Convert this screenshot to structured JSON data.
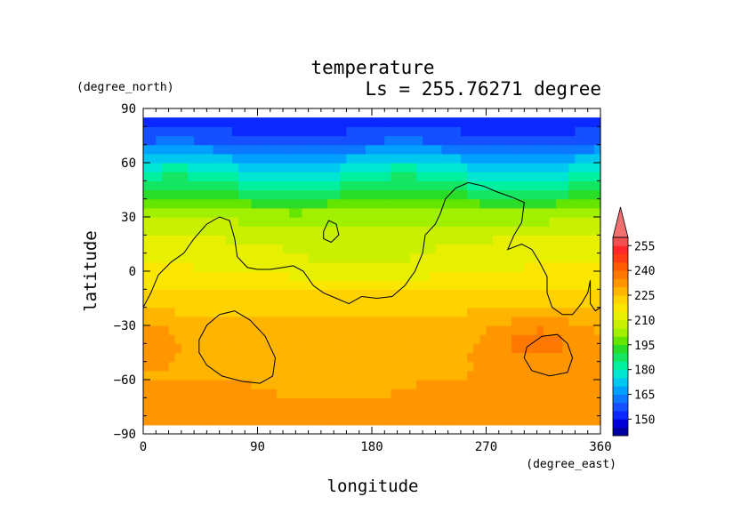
{
  "chart_data": {
    "type": "heatmap",
    "title": "temperature",
    "subtitle": "Ls = 255.76271 degree",
    "xlabel": "longitude",
    "ylabel": "latitude",
    "x_unit": "(degree_east)",
    "y_unit": "(degree_north)",
    "xlim": [
      0,
      360
    ],
    "ylim": [
      -90,
      90
    ],
    "x_ticks": [
      "0",
      "90",
      "180",
      "270",
      "360"
    ],
    "y_ticks": [
      "90",
      "60",
      "30",
      "0",
      "−30",
      "−60",
      "−90"
    ],
    "x_tick_values": [
      0,
      90,
      180,
      270,
      360
    ],
    "y_tick_values": [
      90,
      60,
      30,
      0,
      -30,
      -60,
      -90
    ],
    "data_lat_range": [
      -85,
      85
    ],
    "colorbar": {
      "levels": [
        140,
        145,
        150,
        155,
        160,
        165,
        170,
        175,
        180,
        185,
        190,
        195,
        200,
        205,
        210,
        215,
        220,
        225,
        230,
        235,
        240,
        245,
        250,
        255,
        260
      ],
      "tick_labels": [
        "150",
        "165",
        "180",
        "195",
        "210",
        "225",
        "240",
        "255"
      ],
      "tick_values": [
        150,
        165,
        180,
        195,
        210,
        225,
        240,
        255
      ],
      "colors": [
        "#0000a0",
        "#0000d8",
        "#0a28ff",
        "#1450ff",
        "#0a78ff",
        "#00a0ff",
        "#00c8f0",
        "#00e6d2",
        "#00f0a0",
        "#14e664",
        "#28dc28",
        "#64e600",
        "#a0f000",
        "#c8f000",
        "#e6f000",
        "#fae600",
        "#ffd200",
        "#ffb400",
        "#ff9600",
        "#ff7800",
        "#ff5a00",
        "#ff3c14",
        "#ff2828",
        "#f05050"
      ],
      "extend": "max",
      "extend_color": "#f07070"
    },
    "field_profile": {
      "latitudes": [
        -85,
        -75,
        -60,
        -45,
        -30,
        -20,
        0,
        15,
        30,
        45,
        60,
        70,
        85
      ],
      "temperatures": [
        232,
        231,
        230,
        229,
        227,
        224,
        216,
        212,
        204,
        188,
        173,
        160,
        150
      ]
    },
    "contour": {
      "description_units": "longitude, latitude",
      "continent": [
        [
          0,
          -20
        ],
        [
          6,
          -12
        ],
        [
          12,
          -2
        ],
        [
          22,
          5
        ],
        [
          32,
          10
        ],
        [
          40,
          18
        ],
        [
          50,
          26
        ],
        [
          60,
          30
        ],
        [
          68,
          28
        ],
        [
          72,
          18
        ],
        [
          74,
          8
        ],
        [
          82,
          2
        ],
        [
          90,
          1
        ],
        [
          100,
          1
        ],
        [
          110,
          2
        ],
        [
          118,
          3
        ],
        [
          126,
          0
        ],
        [
          134,
          -8
        ],
        [
          142,
          -12
        ],
        [
          152,
          -15
        ],
        [
          162,
          -18
        ],
        [
          172,
          -14
        ],
        [
          184,
          -15
        ],
        [
          196,
          -14
        ],
        [
          206,
          -8
        ],
        [
          214,
          0
        ],
        [
          220,
          10
        ],
        [
          222,
          20
        ],
        [
          230,
          26
        ],
        [
          234,
          32
        ],
        [
          238,
          40
        ],
        [
          246,
          46
        ],
        [
          256,
          49
        ],
        [
          268,
          47
        ],
        [
          278,
          44
        ],
        [
          290,
          41
        ],
        [
          300,
          38
        ],
        [
          298,
          27
        ],
        [
          292,
          20
        ],
        [
          287,
          12
        ],
        [
          298,
          15
        ],
        [
          306,
          12
        ],
        [
          312,
          5
        ],
        [
          318,
          -3
        ],
        [
          318,
          -12
        ],
        [
          322,
          -20
        ],
        [
          330,
          -24
        ],
        [
          338,
          -24
        ],
        [
          345,
          -18
        ],
        [
          350,
          -12
        ],
        [
          352,
          -5
        ],
        [
          352,
          -18
        ],
        [
          356,
          -22
        ],
        [
          360,
          -20
        ]
      ],
      "island": [
        [
          142,
          22
        ],
        [
          146,
          28
        ],
        [
          152,
          26
        ],
        [
          154,
          20
        ],
        [
          148,
          16
        ],
        [
          142,
          18
        ],
        [
          142,
          22
        ]
      ],
      "southern_loop_1": [
        [
          44,
          -38
        ],
        [
          50,
          -30
        ],
        [
          60,
          -24
        ],
        [
          72,
          -22
        ],
        [
          84,
          -27
        ],
        [
          96,
          -36
        ],
        [
          104,
          -48
        ],
        [
          102,
          -58
        ],
        [
          92,
          -62
        ],
        [
          78,
          -61
        ],
        [
          62,
          -58
        ],
        [
          50,
          -52
        ],
        [
          44,
          -45
        ],
        [
          44,
          -38
        ]
      ],
      "southern_loop_2": [
        [
          302,
          -42
        ],
        [
          314,
          -36
        ],
        [
          326,
          -35
        ],
        [
          334,
          -40
        ],
        [
          338,
          -48
        ],
        [
          334,
          -56
        ],
        [
          320,
          -58
        ],
        [
          306,
          -55
        ],
        [
          300,
          -48
        ],
        [
          302,
          -42
        ]
      ]
    }
  }
}
